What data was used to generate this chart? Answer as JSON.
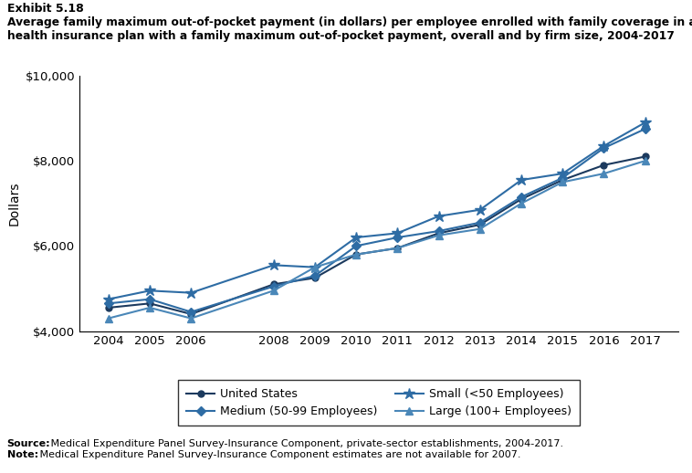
{
  "exhibit": "Exhibit 5.18",
  "title_line1": "Average family maximum out-of-pocket payment (in dollars) per employee enrolled with family coverage in a",
  "title_line2": "health insurance plan with a family maximum out-of-pocket payment, overall and by firm size, 2004-2017",
  "ylabel": "Dollars",
  "years": [
    2004,
    2005,
    2006,
    2008,
    2009,
    2010,
    2011,
    2012,
    2013,
    2014,
    2015,
    2016,
    2017
  ],
  "series": {
    "United States": {
      "values": [
        4550,
        4650,
        4400,
        5100,
        5250,
        5800,
        5950,
        6300,
        6500,
        7100,
        7550,
        7900,
        8100
      ],
      "color": "#1c3a5e",
      "marker": "o",
      "markersize": 5,
      "linewidth": 1.5,
      "label": "United States"
    },
    "Small": {
      "values": [
        4750,
        4950,
        4900,
        5550,
        5500,
        6200,
        6300,
        6700,
        6850,
        7550,
        7700,
        8350,
        8900
      ],
      "color": "#2e6ca4",
      "marker": "*",
      "markersize": 9,
      "linewidth": 1.5,
      "label": "Small (<50 Employees)"
    },
    "Medium": {
      "values": [
        4650,
        4750,
        4450,
        5050,
        5300,
        6000,
        6200,
        6350,
        6550,
        7150,
        7600,
        8300,
        8750
      ],
      "color": "#2e6ca4",
      "marker": "D",
      "markersize": 5,
      "linewidth": 1.5,
      "label": "Medium (50-99 Employees)"
    },
    "Large": {
      "values": [
        4300,
        4550,
        4300,
        4950,
        5500,
        5800,
        5950,
        6250,
        6400,
        7000,
        7500,
        7700,
        8000
      ],
      "color": "#4a87b8",
      "marker": "^",
      "markersize": 6,
      "linewidth": 1.5,
      "label": "Large (100+ Employees)"
    }
  },
  "ylim": [
    4000,
    10000
  ],
  "yticks": [
    4000,
    6000,
    8000,
    10000
  ],
  "ytick_labels": [
    "$4,000",
    "$6,000",
    "$8,000",
    "$10,000"
  ],
  "background_color": "#ffffff"
}
